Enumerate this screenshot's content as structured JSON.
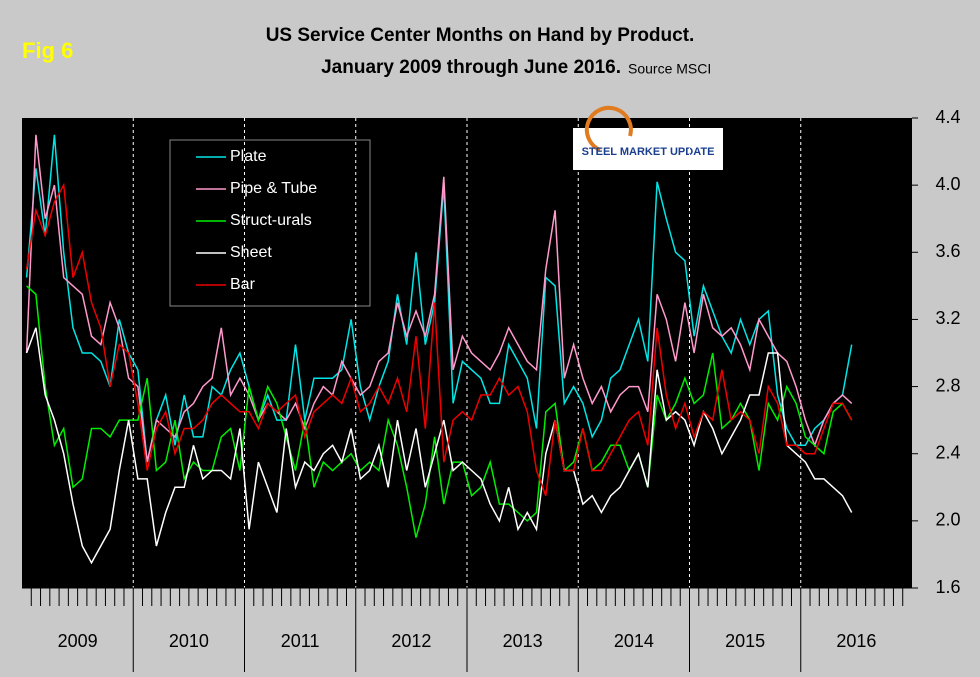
{
  "chart_data": {
    "type": "line",
    "badge": "Fig 6",
    "title": "US Service Center Months on Hand by Product.",
    "subtitle": "January 2009 through June 2016.",
    "source": "Source MSCI",
    "logo": "STEEL MARKET UPDATE",
    "year_labels": [
      "2009",
      "2010",
      "2011",
      "2012",
      "2013",
      "2014",
      "2015",
      "2016"
    ],
    "ylim": [
      1.6,
      4.4
    ],
    "yticks": [
      1.6,
      {
        "value": 2,
        "label": "2.0"
      },
      2.4,
      2.8,
      3.2,
      3.6,
      {
        "value": 4,
        "label": "4.0"
      },
      4.4
    ],
    "series": [
      {
        "name": "Plate",
        "color": "#00e6e6",
        "values": [
          3.45,
          4.1,
          3.7,
          4.3,
          3.6,
          3.15,
          3.0,
          3.0,
          2.95,
          2.8,
          3.2,
          3.0,
          2.9,
          2.35,
          2.6,
          2.75,
          2.45,
          2.75,
          2.5,
          2.5,
          2.8,
          2.75,
          2.9,
          3.0,
          2.8,
          2.6,
          2.75,
          2.6,
          2.6,
          3.05,
          2.6,
          2.85,
          2.85,
          2.85,
          2.9,
          3.2,
          2.8,
          2.6,
          2.8,
          2.95,
          3.35,
          3.05,
          3.6,
          3.05,
          3.3,
          4.0,
          2.7,
          2.95,
          2.9,
          2.85,
          2.7,
          2.7,
          3.05,
          2.95,
          2.85,
          2.55,
          3.45,
          3.4,
          2.7,
          2.8,
          2.7,
          2.5,
          2.6,
          2.85,
          2.9,
          3.05,
          3.2,
          2.95,
          4.02,
          3.8,
          3.6,
          3.55,
          3.1,
          3.4,
          3.25,
          3.1,
          3.0,
          3.2,
          3.05,
          3.2,
          3.25,
          2.75,
          2.55,
          2.45,
          2.45,
          2.55,
          2.6,
          2.7,
          2.75,
          3.05
        ]
      },
      {
        "name": "Pipe & Tube",
        "color": "#ff99cc",
        "values": [
          3.0,
          4.3,
          3.8,
          4.0,
          3.45,
          3.4,
          3.35,
          3.1,
          3.05,
          3.3,
          3.15,
          2.85,
          2.8,
          2.35,
          2.6,
          2.55,
          2.5,
          2.65,
          2.7,
          2.8,
          2.85,
          3.15,
          2.75,
          2.85,
          2.75,
          2.6,
          2.7,
          2.65,
          2.6,
          2.7,
          2.55,
          2.7,
          2.8,
          2.75,
          2.95,
          2.85,
          2.75,
          2.8,
          2.95,
          3.0,
          3.3,
          3.1,
          3.25,
          3.1,
          3.35,
          4.05,
          2.9,
          3.1,
          3.0,
          2.95,
          2.9,
          3.0,
          3.15,
          3.05,
          2.95,
          2.9,
          3.5,
          3.85,
          2.85,
          3.05,
          2.85,
          2.7,
          2.8,
          2.65,
          2.75,
          2.8,
          2.8,
          2.65,
          3.35,
          3.2,
          2.95,
          3.3,
          3.0,
          3.35,
          3.15,
          3.1,
          3.15,
          3.05,
          2.9,
          3.2,
          3.1,
          3.0,
          2.95,
          2.8,
          2.6,
          2.45,
          2.6,
          2.7,
          2.75,
          2.7
        ]
      },
      {
        "name": "Struct-urals",
        "color": "#00ee00",
        "values": [
          3.4,
          3.35,
          2.8,
          2.45,
          2.55,
          2.2,
          2.25,
          2.55,
          2.55,
          2.5,
          2.6,
          2.6,
          2.6,
          2.85,
          2.3,
          2.35,
          2.6,
          2.25,
          2.35,
          2.3,
          2.3,
          2.5,
          2.55,
          2.3,
          2.8,
          2.6,
          2.8,
          2.7,
          2.5,
          2.3,
          2.6,
          2.2,
          2.35,
          2.3,
          2.35,
          2.4,
          2.3,
          2.35,
          2.3,
          2.6,
          2.45,
          2.2,
          1.9,
          2.1,
          2.5,
          2.1,
          2.35,
          2.35,
          2.15,
          2.2,
          2.35,
          2.1,
          2.1,
          2.05,
          2.0,
          2.05,
          2.65,
          2.7,
          2.3,
          2.35,
          2.55,
          2.3,
          2.35,
          2.45,
          2.45,
          2.3,
          2.4,
          2.2,
          2.75,
          2.6,
          2.7,
          2.85,
          2.7,
          2.75,
          3.0,
          2.55,
          2.6,
          2.7,
          2.6,
          2.3,
          2.7,
          2.6,
          2.8,
          2.7,
          2.5,
          2.45,
          2.4,
          2.65,
          2.7,
          2.6
        ]
      },
      {
        "name": "Sheet",
        "color": "#ffffff",
        "values": [
          3.0,
          3.15,
          2.75,
          2.6,
          2.4,
          2.1,
          1.85,
          1.75,
          1.85,
          1.95,
          2.3,
          2.6,
          2.25,
          2.25,
          1.85,
          2.05,
          2.2,
          2.2,
          2.45,
          2.25,
          2.3,
          2.3,
          2.25,
          2.55,
          1.95,
          2.35,
          2.2,
          2.05,
          2.55,
          2.2,
          2.35,
          2.3,
          2.4,
          2.45,
          2.35,
          2.55,
          2.25,
          2.3,
          2.45,
          2.2,
          2.6,
          2.3,
          2.55,
          2.2,
          2.4,
          2.6,
          2.3,
          2.35,
          2.3,
          2.25,
          2.1,
          2.0,
          2.2,
          1.95,
          2.05,
          1.95,
          2.4,
          2.6,
          2.3,
          2.3,
          2.1,
          2.15,
          2.05,
          2.15,
          2.2,
          2.3,
          2.4,
          2.2,
          2.9,
          2.6,
          2.65,
          2.6,
          2.45,
          2.65,
          2.55,
          2.4,
          2.5,
          2.6,
          2.75,
          2.75,
          3.0,
          3.0,
          2.45,
          2.4,
          2.35,
          2.25,
          2.25,
          2.2,
          2.15,
          2.05
        ]
      },
      {
        "name": "Bar",
        "color": "#ee0000",
        "values": [
          3.5,
          3.85,
          3.7,
          3.9,
          4.0,
          3.45,
          3.6,
          3.3,
          3.15,
          2.8,
          3.05,
          3.0,
          2.7,
          2.3,
          2.55,
          2.65,
          2.4,
          2.55,
          2.55,
          2.6,
          2.7,
          2.75,
          2.7,
          2.65,
          2.65,
          2.55,
          2.7,
          2.65,
          2.7,
          2.75,
          2.5,
          2.65,
          2.7,
          2.75,
          2.7,
          2.85,
          2.65,
          2.7,
          2.8,
          2.7,
          2.85,
          2.65,
          3.1,
          2.55,
          3.3,
          2.35,
          2.6,
          2.65,
          2.6,
          2.75,
          2.75,
          2.85,
          2.75,
          2.8,
          2.65,
          2.3,
          2.15,
          2.6,
          2.3,
          2.3,
          2.55,
          2.3,
          2.3,
          2.4,
          2.5,
          2.6,
          2.65,
          2.45,
          3.15,
          2.75,
          2.55,
          2.7,
          2.5,
          2.65,
          2.6,
          2.9,
          2.6,
          2.65,
          2.6,
          2.4,
          2.8,
          2.7,
          2.45,
          2.45,
          2.4,
          2.4,
          2.55,
          2.7,
          2.7,
          2.6
        ]
      }
    ]
  }
}
